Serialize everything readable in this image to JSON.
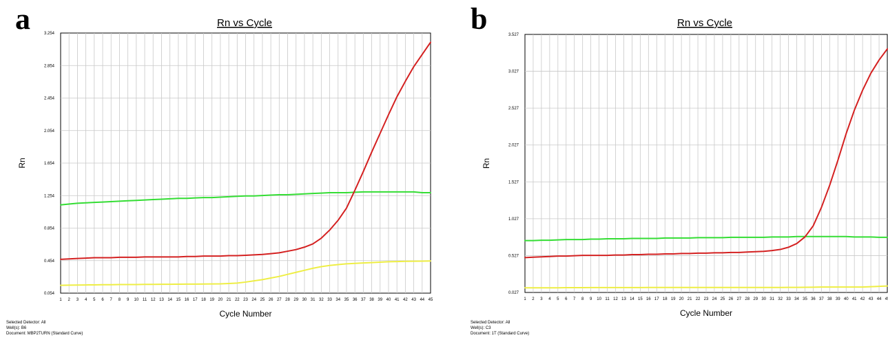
{
  "chart_data": [
    {
      "panel_label": "a",
      "type": "line",
      "title": "Rn vs Cycle",
      "xlabel": "Cycle Number",
      "ylabel": "Rn",
      "x": [
        1,
        2,
        3,
        4,
        5,
        6,
        7,
        8,
        9,
        10,
        11,
        12,
        13,
        14,
        15,
        16,
        17,
        18,
        19,
        20,
        21,
        22,
        23,
        24,
        25,
        26,
        27,
        28,
        29,
        30,
        31,
        32,
        33,
        34,
        35,
        36,
        37,
        38,
        39,
        40,
        41,
        42,
        43,
        44,
        45
      ],
      "xlim": [
        1,
        45
      ],
      "ylim": [
        0.054,
        3.254
      ],
      "y_ticks": [
        "0.054",
        "0.454",
        "0.854",
        "1.254",
        "1.654",
        "2.054",
        "2.454",
        "2.854",
        "3.254"
      ],
      "grid": true,
      "series": [
        {
          "color": "#d42020",
          "values": [
            0.47,
            0.475,
            0.48,
            0.485,
            0.49,
            0.49,
            0.49,
            0.495,
            0.495,
            0.495,
            0.5,
            0.5,
            0.5,
            0.5,
            0.5,
            0.505,
            0.505,
            0.51,
            0.51,
            0.51,
            0.515,
            0.515,
            0.52,
            0.525,
            0.53,
            0.54,
            0.55,
            0.57,
            0.59,
            0.62,
            0.66,
            0.73,
            0.83,
            0.95,
            1.1,
            1.32,
            1.55,
            1.79,
            2.02,
            2.25,
            2.47,
            2.66,
            2.84,
            2.99,
            3.14
          ]
        },
        {
          "color": "#33dd33",
          "values": [
            1.14,
            1.15,
            1.16,
            1.165,
            1.17,
            1.175,
            1.18,
            1.185,
            1.19,
            1.195,
            1.2,
            1.205,
            1.21,
            1.215,
            1.22,
            1.22,
            1.225,
            1.23,
            1.23,
            1.235,
            1.24,
            1.245,
            1.25,
            1.25,
            1.255,
            1.26,
            1.265,
            1.265,
            1.27,
            1.275,
            1.28,
            1.285,
            1.29,
            1.29,
            1.29,
            1.295,
            1.3,
            1.3,
            1.3,
            1.3,
            1.3,
            1.3,
            1.3,
            1.29,
            1.29
          ]
        },
        {
          "color": "#eeee44",
          "values": [
            0.15,
            0.152,
            0.154,
            0.155,
            0.156,
            0.158,
            0.158,
            0.16,
            0.16,
            0.16,
            0.162,
            0.162,
            0.163,
            0.163,
            0.164,
            0.165,
            0.165,
            0.166,
            0.167,
            0.168,
            0.172,
            0.178,
            0.19,
            0.205,
            0.22,
            0.24,
            0.26,
            0.285,
            0.31,
            0.335,
            0.36,
            0.38,
            0.395,
            0.405,
            0.415,
            0.42,
            0.425,
            0.43,
            0.435,
            0.44,
            0.442,
            0.445,
            0.447,
            0.448,
            0.45
          ]
        }
      ],
      "footer": [
        "Selected Detector: All",
        "Well(s): B6",
        "Document: MBP2TURN (Standard Curve)"
      ]
    },
    {
      "panel_label": "b",
      "type": "line",
      "title": "Rn vs Cycle",
      "xlabel": "Cycle Number",
      "ylabel": "Rn",
      "x": [
        1,
        2,
        3,
        4,
        5,
        6,
        7,
        8,
        9,
        10,
        11,
        12,
        13,
        14,
        15,
        16,
        17,
        18,
        19,
        20,
        21,
        22,
        23,
        24,
        25,
        26,
        27,
        28,
        29,
        30,
        31,
        32,
        33,
        34,
        35,
        36,
        37,
        38,
        39,
        40,
        41,
        42,
        43,
        44,
        45
      ],
      "xlim": [
        1,
        45
      ],
      "ylim": [
        0.027,
        3.527
      ],
      "y_ticks": [
        "0.027",
        "0.527",
        "1.027",
        "1.527",
        "2.027",
        "2.527",
        "3.027",
        "3.527"
      ],
      "grid": true,
      "series": [
        {
          "color": "#d42020",
          "values": [
            0.5,
            0.505,
            0.51,
            0.515,
            0.52,
            0.52,
            0.525,
            0.53,
            0.53,
            0.53,
            0.53,
            0.535,
            0.535,
            0.54,
            0.54,
            0.545,
            0.545,
            0.55,
            0.55,
            0.555,
            0.555,
            0.56,
            0.56,
            0.565,
            0.565,
            0.57,
            0.57,
            0.575,
            0.58,
            0.585,
            0.595,
            0.61,
            0.64,
            0.69,
            0.78,
            0.93,
            1.18,
            1.48,
            1.82,
            2.18,
            2.5,
            2.77,
            3.0,
            3.18,
            3.33
          ]
        },
        {
          "color": "#33dd33",
          "values": [
            0.73,
            0.73,
            0.735,
            0.735,
            0.74,
            0.745,
            0.745,
            0.745,
            0.75,
            0.75,
            0.755,
            0.755,
            0.755,
            0.76,
            0.76,
            0.76,
            0.76,
            0.765,
            0.765,
            0.765,
            0.765,
            0.77,
            0.77,
            0.77,
            0.77,
            0.775,
            0.775,
            0.775,
            0.775,
            0.775,
            0.78,
            0.78,
            0.78,
            0.785,
            0.785,
            0.785,
            0.785,
            0.785,
            0.785,
            0.785,
            0.78,
            0.78,
            0.78,
            0.775,
            0.775
          ]
        },
        {
          "color": "#eeee44",
          "values": [
            0.09,
            0.09,
            0.09,
            0.09,
            0.09,
            0.092,
            0.092,
            0.092,
            0.094,
            0.094,
            0.094,
            0.094,
            0.094,
            0.094,
            0.094,
            0.095,
            0.095,
            0.095,
            0.095,
            0.095,
            0.095,
            0.095,
            0.095,
            0.095,
            0.095,
            0.095,
            0.095,
            0.095,
            0.095,
            0.095,
            0.095,
            0.095,
            0.096,
            0.096,
            0.097,
            0.098,
            0.1,
            0.1,
            0.1,
            0.1,
            0.1,
            0.1,
            0.105,
            0.11,
            0.115
          ]
        }
      ],
      "footer": [
        "Selected Detector: All",
        "Well(s): C3",
        "Document: 1T (Standard Curve)"
      ]
    }
  ]
}
